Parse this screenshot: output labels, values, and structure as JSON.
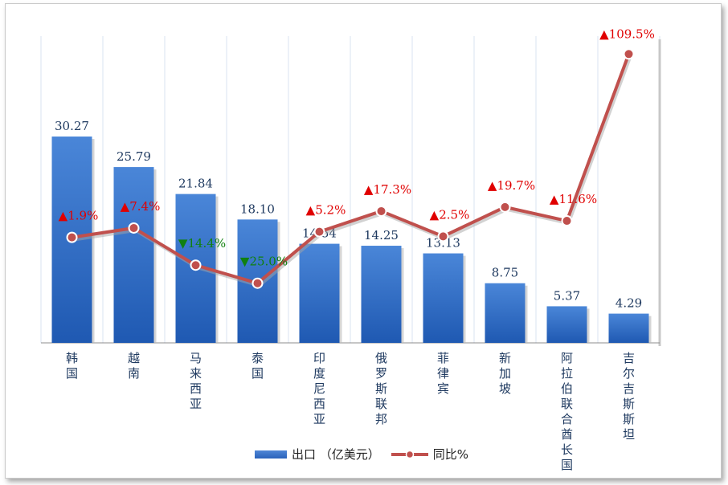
{
  "chart_data": {
    "type": "bar",
    "categories": [
      "韩国",
      "越南",
      "马来西亚",
      "泰国",
      "印度尼西亚",
      "俄罗斯联邦",
      "菲律宾",
      "新加坡",
      "阿拉伯联合酋长国",
      "吉尔吉斯斯坦"
    ],
    "series": [
      {
        "name": "出口 （亿美元）",
        "type": "bar",
        "values": [
          30.27,
          25.79,
          21.84,
          18.1,
          14.54,
          14.25,
          13.13,
          8.75,
          5.37,
          4.29
        ],
        "labels": [
          "30.27",
          "25.79",
          "21.84",
          "18.10",
          "14.54",
          "14.25",
          "13.13",
          "8.75",
          "5.37",
          "4.29"
        ]
      },
      {
        "name": "同比%",
        "type": "line",
        "values": [
          1.9,
          7.4,
          -14.4,
          -25.0,
          5.2,
          17.3,
          2.5,
          19.7,
          11.6,
          109.5
        ],
        "labels": [
          "▲1.9%",
          "▲7.4%",
          "▼14.4%",
          "▼25.0%",
          "▲5.2%",
          "▲17.3%",
          "▲2.5%",
          "▲19.7%",
          "▲11.6%",
          "▲109.5%"
        ]
      }
    ],
    "ylim": [
      0,
      45
    ],
    "y2lim": [
      -60,
      120
    ],
    "grid": "vertical",
    "legend": "bottom",
    "colors": {
      "bar": "#3170c8",
      "line": "#c0504d",
      "up": "#e00000",
      "down": "#108010"
    }
  }
}
